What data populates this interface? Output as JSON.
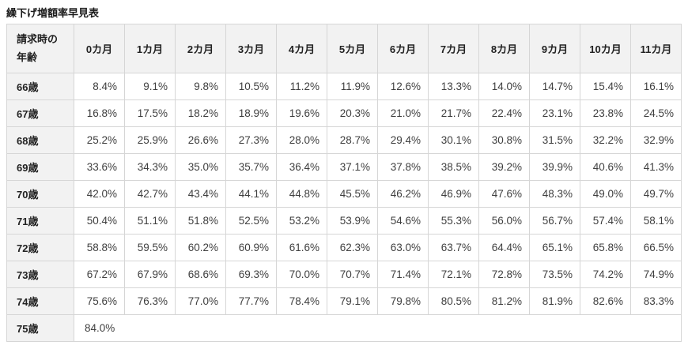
{
  "title": "繰下げ増額率早見表",
  "table": {
    "corner_header_lines": [
      "請求時の",
      "年齢"
    ],
    "month_headers": [
      "0カ月",
      "1カ月",
      "2カ月",
      "3カ月",
      "4カ月",
      "5カ月",
      "6カ月",
      "7カ月",
      "8カ月",
      "9カ月",
      "10カ月",
      "11カ月"
    ],
    "rows": [
      {
        "age": "66歳",
        "values": [
          "8.4%",
          "9.1%",
          "9.8%",
          "10.5%",
          "11.2%",
          "11.9%",
          "12.6%",
          "13.3%",
          "14.0%",
          "14.7%",
          "15.4%",
          "16.1%"
        ]
      },
      {
        "age": "67歳",
        "values": [
          "16.8%",
          "17.5%",
          "18.2%",
          "18.9%",
          "19.6%",
          "20.3%",
          "21.0%",
          "21.7%",
          "22.4%",
          "23.1%",
          "23.8%",
          "24.5%"
        ]
      },
      {
        "age": "68歳",
        "values": [
          "25.2%",
          "25.9%",
          "26.6%",
          "27.3%",
          "28.0%",
          "28.7%",
          "29.4%",
          "30.1%",
          "30.8%",
          "31.5%",
          "32.2%",
          "32.9%"
        ]
      },
      {
        "age": "69歳",
        "values": [
          "33.6%",
          "34.3%",
          "35.0%",
          "35.7%",
          "36.4%",
          "37.1%",
          "37.8%",
          "38.5%",
          "39.2%",
          "39.9%",
          "40.6%",
          "41.3%"
        ]
      },
      {
        "age": "70歳",
        "values": [
          "42.0%",
          "42.7%",
          "43.4%",
          "44.1%",
          "44.8%",
          "45.5%",
          "46.2%",
          "46.9%",
          "47.6%",
          "48.3%",
          "49.0%",
          "49.7%"
        ]
      },
      {
        "age": "71歳",
        "values": [
          "50.4%",
          "51.1%",
          "51.8%",
          "52.5%",
          "53.2%",
          "53.9%",
          "54.6%",
          "55.3%",
          "56.0%",
          "56.7%",
          "57.4%",
          "58.1%"
        ]
      },
      {
        "age": "72歳",
        "values": [
          "58.8%",
          "59.5%",
          "60.2%",
          "60.9%",
          "61.6%",
          "62.3%",
          "63.0%",
          "63.7%",
          "64.4%",
          "65.1%",
          "65.8%",
          "66.5%"
        ]
      },
      {
        "age": "73歳",
        "values": [
          "67.2%",
          "67.9%",
          "68.6%",
          "69.3%",
          "70.0%",
          "70.7%",
          "71.4%",
          "72.1%",
          "72.8%",
          "73.5%",
          "74.2%",
          "74.9%"
        ]
      },
      {
        "age": "74歳",
        "values": [
          "75.6%",
          "76.3%",
          "77.0%",
          "77.7%",
          "78.4%",
          "79.1%",
          "79.8%",
          "80.5%",
          "81.2%",
          "81.9%",
          "82.6%",
          "83.3%"
        ]
      },
      {
        "age": "75歳",
        "values": [
          "84.0%"
        ],
        "colspan": 12
      }
    ]
  },
  "colors": {
    "header_bg": "#f2f2f2",
    "border": "#d6d6d6",
    "title_text": "#1a1a1a",
    "header_text": "#222222",
    "cell_text": "#3f3f3f"
  }
}
